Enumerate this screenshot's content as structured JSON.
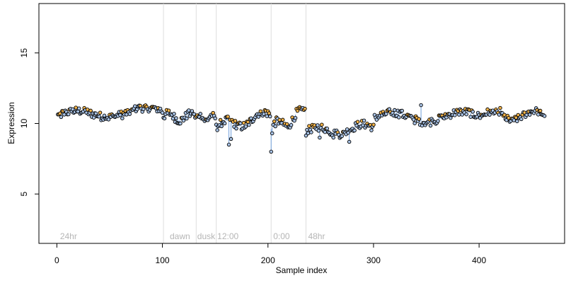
{
  "chart_data": {
    "type": "scatter",
    "title": "",
    "xlabel": "Sample index",
    "ylabel": "Expression",
    "xlim": [
      -17,
      481
    ],
    "ylim": [
      1.5,
      18.5
    ],
    "xticks": [
      0,
      100,
      200,
      300,
      400
    ],
    "yticks": [
      5,
      10,
      15
    ],
    "grid": false,
    "colors": {
      "points_fill_light": "#a9c3e6",
      "points_fill_orange": "#f3b349",
      "points_stroke": "#000000",
      "step_line": "#6f9fdc",
      "dividers": "#dddddd",
      "region_labels": "#b5b5b5"
    },
    "dividers": [
      101,
      132,
      151,
      203,
      236
    ],
    "regions": [
      {
        "label": "24hr",
        "x": 3
      },
      {
        "label": "dawn",
        "x": 107
      },
      {
        "label": "dusk",
        "x": 133
      },
      {
        "label": "12:00",
        "x": 152
      },
      {
        "label": "0:00",
        "x": 205
      },
      {
        "label": "48hr",
        "x": 238
      }
    ],
    "segments": [
      {
        "x0": 1,
        "x1": 100,
        "base": 10.55,
        "amp": 0.28,
        "trend": 0.35,
        "spread": 0.28
      },
      {
        "x0": 101,
        "x1": 131,
        "base": 10.5,
        "amp": 0.25,
        "trend": -0.1,
        "spread": 0.28
      },
      {
        "x0": 132,
        "x1": 150,
        "base": 10.4,
        "amp": 0.2,
        "trend": 0.0,
        "spread": 0.2
      },
      {
        "x0": 151,
        "x1": 202,
        "base": 9.7,
        "amp": 0.35,
        "trend": 0.9,
        "spread": 0.28
      },
      {
        "x0": 203,
        "x1": 235,
        "base": 9.6,
        "amp": 0.35,
        "trend": 1.2,
        "spread": 0.3
      },
      {
        "x0": 236,
        "x1": 300,
        "base": 9.4,
        "amp": 0.3,
        "trend": 0.3,
        "spread": 0.28
      },
      {
        "x0": 301,
        "x1": 400,
        "base": 10.4,
        "amp": 0.35,
        "trend": 0.1,
        "spread": 0.28
      },
      {
        "x0": 401,
        "x1": 462,
        "base": 10.5,
        "amp": 0.3,
        "trend": 0.1,
        "spread": 0.25
      }
    ],
    "outliers": [
      {
        "x": 163,
        "y": 8.5
      },
      {
        "x": 165,
        "y": 8.9
      },
      {
        "x": 203,
        "y": 8.0
      },
      {
        "x": 204,
        "y": 9.3
      },
      {
        "x": 277,
        "y": 8.7
      },
      {
        "x": 262,
        "y": 9.0
      },
      {
        "x": 249,
        "y": 9.0
      },
      {
        "x": 198,
        "y": 10.9
      },
      {
        "x": 232,
        "y": 11.0
      },
      {
        "x": 345,
        "y": 11.3
      },
      {
        "x": 420,
        "y": 11.1
      }
    ]
  }
}
